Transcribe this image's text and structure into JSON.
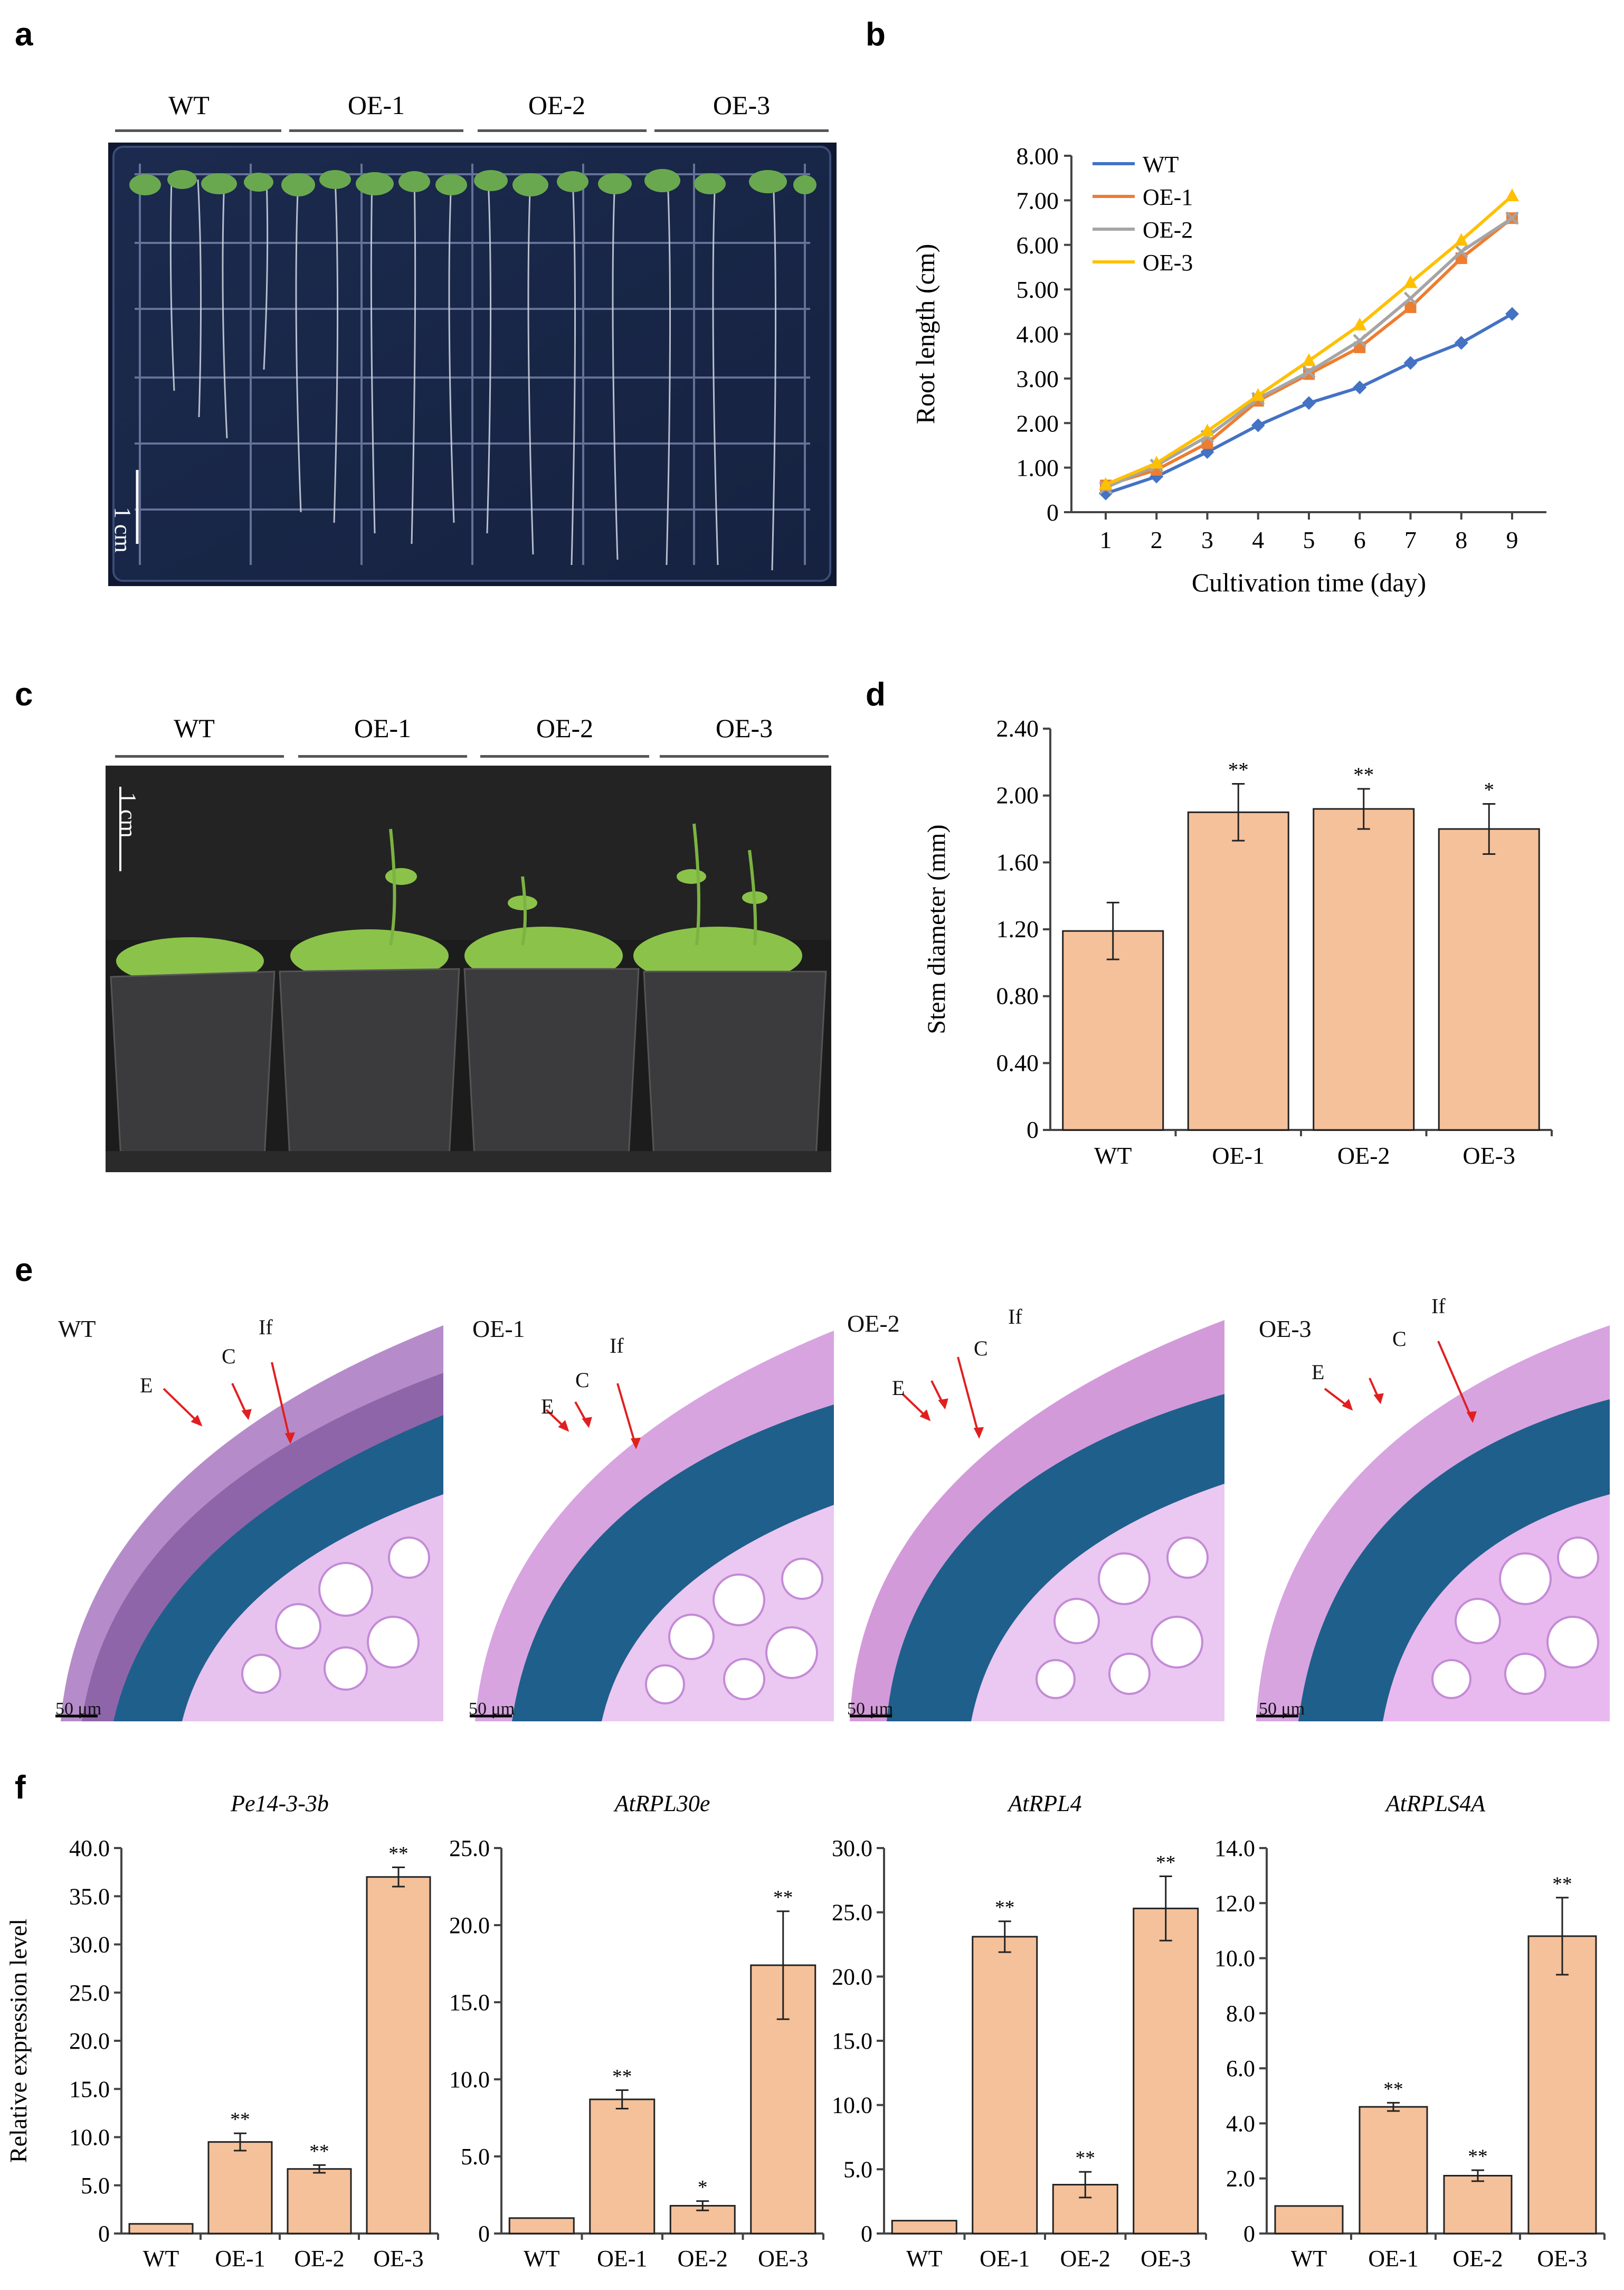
{
  "panels": {
    "a": {
      "letter": "a",
      "genotypes": [
        "WT",
        "OE-1",
        "OE-2",
        "OE-3"
      ],
      "scale": "1 cm"
    },
    "b": {
      "letter": "b"
    },
    "c": {
      "letter": "c",
      "genotypes": [
        "WT",
        "OE-1",
        "OE-2",
        "OE-3"
      ],
      "scale": "1 cm"
    },
    "d": {
      "letter": "d"
    },
    "e": {
      "letter": "e",
      "sections": [
        {
          "title": "WT",
          "labels": [
            "If",
            "C",
            "E"
          ],
          "scale": "50 μm"
        },
        {
          "title": "OE-1",
          "labels": [
            "If",
            "C",
            "E"
          ],
          "scale": "50 μm"
        },
        {
          "title": "OE-2",
          "labels": [
            "If",
            "C",
            "E"
          ],
          "scale": "50 μm"
        },
        {
          "title": "OE-3",
          "labels": [
            "If",
            "C",
            "E"
          ],
          "scale": "50 μm"
        }
      ]
    },
    "f": {
      "letter": "f"
    }
  },
  "colors": {
    "wt": "#4472C4",
    "oe1": "#ED7D31",
    "oe2": "#A5A5A5",
    "oe3": "#FFC000",
    "bar": "#F4C19B",
    "bar_edge": "#222222"
  },
  "chart_data": [
    {
      "id": "b",
      "type": "line",
      "xlabel": "Cultivation time (day)",
      "ylabel": "Root length (cm)",
      "x": [
        1,
        2,
        3,
        4,
        5,
        6,
        7,
        8,
        9
      ],
      "ylim": [
        0,
        8
      ],
      "yticks": [
        "0",
        "1.00",
        "2.00",
        "3.00",
        "4.00",
        "5.00",
        "6.00",
        "7.00",
        "8.00"
      ],
      "legend_position": "top-left",
      "series": [
        {
          "name": "WT",
          "marker": "diamond",
          "values": [
            0.42,
            0.8,
            1.35,
            1.95,
            2.45,
            2.8,
            3.35,
            3.8,
            4.45
          ]
        },
        {
          "name": "OE-1",
          "marker": "square",
          "values": [
            0.6,
            0.95,
            1.55,
            2.5,
            3.1,
            3.7,
            4.6,
            5.7,
            6.6
          ]
        },
        {
          "name": "OE-2",
          "marker": "x",
          "values": [
            0.55,
            1.05,
            1.7,
            2.55,
            3.15,
            3.85,
            4.8,
            5.85,
            6.6
          ]
        },
        {
          "name": "OE-3",
          "marker": "triangle",
          "values": [
            0.62,
            1.1,
            1.82,
            2.62,
            3.4,
            4.2,
            5.15,
            6.1,
            7.1
          ]
        }
      ]
    },
    {
      "id": "d",
      "type": "bar",
      "ylabel": "Stem diameter (mm)",
      "xlabel": "",
      "categories": [
        "WT",
        "OE-1",
        "OE-2",
        "OE-3"
      ],
      "values": [
        1.19,
        1.9,
        1.92,
        1.8
      ],
      "errors": [
        0.17,
        0.17,
        0.12,
        0.15
      ],
      "significance": [
        "",
        "**",
        "**",
        "*"
      ],
      "ylim": [
        0,
        2.4
      ],
      "yticks": [
        "0",
        "0.40",
        "0.80",
        "1.20",
        "1.60",
        "2.00",
        "2.40"
      ]
    },
    {
      "id": "f1",
      "type": "bar",
      "title": "Pe14-3-3b",
      "ylabel": "Relative expression level",
      "categories": [
        "WT",
        "OE-1",
        "OE-2",
        "OE-3"
      ],
      "values": [
        1.0,
        9.5,
        6.7,
        37.0
      ],
      "errors": [
        0,
        0.9,
        0.4,
        1.0
      ],
      "significance": [
        "",
        "**",
        "**",
        "**"
      ],
      "ylim": [
        0,
        40
      ],
      "yticks": [
        "0",
        "5.0",
        "10.0",
        "15.0",
        "20.0",
        "25.0",
        "30.0",
        "35.0",
        "40.0"
      ]
    },
    {
      "id": "f2",
      "type": "bar",
      "title": "AtRPL30e",
      "ylabel": "",
      "categories": [
        "WT",
        "OE-1",
        "OE-2",
        "OE-3"
      ],
      "values": [
        1.0,
        8.7,
        1.8,
        17.4
      ],
      "errors": [
        0,
        0.6,
        0.3,
        3.5
      ],
      "significance": [
        "",
        "**",
        "*",
        "**"
      ],
      "ylim": [
        0,
        25
      ],
      "yticks": [
        "0",
        "5.0",
        "10.0",
        "15.0",
        "20.0",
        "25.0"
      ]
    },
    {
      "id": "f3",
      "type": "bar",
      "title": "AtRPL4",
      "ylabel": "",
      "categories": [
        "WT",
        "OE-1",
        "OE-2",
        "OE-3"
      ],
      "values": [
        1.0,
        23.1,
        3.8,
        25.3
      ],
      "errors": [
        0,
        1.2,
        1.0,
        2.5
      ],
      "significance": [
        "",
        "**",
        "**",
        "**"
      ],
      "ylim": [
        0,
        30
      ],
      "yticks": [
        "0",
        "5.0",
        "10.0",
        "15.0",
        "20.0",
        "25.0",
        "30.0"
      ]
    },
    {
      "id": "f4",
      "type": "bar",
      "title": "AtRPLS4A",
      "ylabel": "",
      "categories": [
        "WT",
        "OE-1",
        "OE-2",
        "OE-3"
      ],
      "values": [
        1.0,
        4.6,
        2.1,
        10.8
      ],
      "errors": [
        0,
        0.15,
        0.2,
        1.4
      ],
      "significance": [
        "",
        "**",
        "**",
        "**"
      ],
      "ylim": [
        0,
        14
      ],
      "yticks": [
        "0",
        "2.0",
        "4.0",
        "6.0",
        "8.0",
        "10.0",
        "12.0",
        "14.0"
      ]
    }
  ]
}
